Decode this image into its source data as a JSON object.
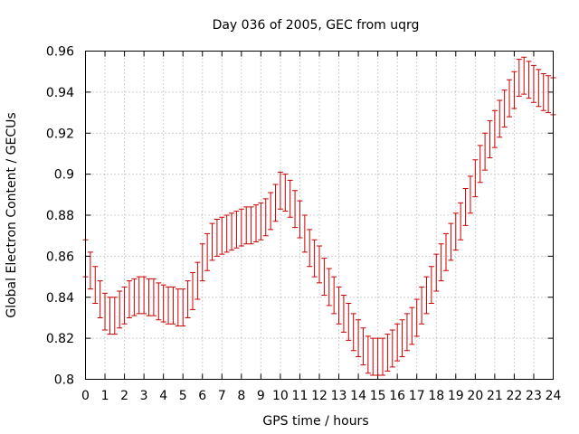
{
  "chart_data": {
    "type": "errorbar",
    "title": "Day 036 of 2005, GEC from uqrg",
    "xlabel": "GPS time / hours",
    "ylabel": "Global Electron Content / GECUs",
    "xlim": [
      0,
      24
    ],
    "ylim": [
      0.8,
      0.96
    ],
    "x_ticks": [
      "0",
      "1",
      "2",
      "3",
      "4",
      "5",
      "6",
      "7",
      "8",
      "9",
      "10",
      "11",
      "12",
      "13",
      "14",
      "15",
      "16",
      "17",
      "18",
      "19",
      "20",
      "21",
      "22",
      "23",
      "24"
    ],
    "y_ticks": [
      "0.8",
      "0.82",
      "0.84",
      "0.86",
      "0.88",
      "0.9",
      "0.92",
      "0.94",
      "0.96"
    ],
    "grid": true,
    "series_color": "#cc0000",
    "error": 0.009,
    "points": [
      [
        0.0,
        0.859
      ],
      [
        0.25,
        0.853
      ],
      [
        0.5,
        0.846
      ],
      [
        0.75,
        0.839
      ],
      [
        1.0,
        0.833
      ],
      [
        1.25,
        0.831
      ],
      [
        1.5,
        0.831
      ],
      [
        1.75,
        0.834
      ],
      [
        2.0,
        0.836
      ],
      [
        2.25,
        0.839
      ],
      [
        2.5,
        0.84
      ],
      [
        2.75,
        0.841
      ],
      [
        3.0,
        0.841
      ],
      [
        3.25,
        0.84
      ],
      [
        3.5,
        0.84
      ],
      [
        3.75,
        0.838
      ],
      [
        4.0,
        0.837
      ],
      [
        4.25,
        0.836
      ],
      [
        4.5,
        0.836
      ],
      [
        4.75,
        0.835
      ],
      [
        5.0,
        0.835
      ],
      [
        5.25,
        0.839
      ],
      [
        5.5,
        0.843
      ],
      [
        5.75,
        0.848
      ],
      [
        6.0,
        0.857
      ],
      [
        6.25,
        0.862
      ],
      [
        6.5,
        0.867
      ],
      [
        6.75,
        0.869
      ],
      [
        7.0,
        0.87
      ],
      [
        7.25,
        0.871
      ],
      [
        7.5,
        0.872
      ],
      [
        7.75,
        0.873
      ],
      [
        8.0,
        0.874
      ],
      [
        8.25,
        0.875
      ],
      [
        8.5,
        0.875
      ],
      [
        8.75,
        0.876
      ],
      [
        9.0,
        0.877
      ],
      [
        9.25,
        0.879
      ],
      [
        9.5,
        0.882
      ],
      [
        9.75,
        0.886
      ],
      [
        10.0,
        0.892
      ],
      [
        10.25,
        0.891
      ],
      [
        10.5,
        0.888
      ],
      [
        10.75,
        0.883
      ],
      [
        11.0,
        0.878
      ],
      [
        11.25,
        0.871
      ],
      [
        11.5,
        0.864
      ],
      [
        11.75,
        0.859
      ],
      [
        12.0,
        0.856
      ],
      [
        12.25,
        0.85
      ],
      [
        12.5,
        0.845
      ],
      [
        12.75,
        0.841
      ],
      [
        13.0,
        0.836
      ],
      [
        13.25,
        0.832
      ],
      [
        13.5,
        0.828
      ],
      [
        13.75,
        0.823
      ],
      [
        14.0,
        0.82
      ],
      [
        14.25,
        0.816
      ],
      [
        14.5,
        0.812
      ],
      [
        14.75,
        0.811
      ],
      [
        15.0,
        0.811
      ],
      [
        15.25,
        0.811
      ],
      [
        15.5,
        0.813
      ],
      [
        15.75,
        0.815
      ],
      [
        16.0,
        0.818
      ],
      [
        16.25,
        0.82
      ],
      [
        16.5,
        0.823
      ],
      [
        16.75,
        0.826
      ],
      [
        17.0,
        0.83
      ],
      [
        17.25,
        0.836
      ],
      [
        17.5,
        0.841
      ],
      [
        17.75,
        0.846
      ],
      [
        18.0,
        0.852
      ],
      [
        18.25,
        0.857
      ],
      [
        18.5,
        0.862
      ],
      [
        18.75,
        0.867
      ],
      [
        19.0,
        0.872
      ],
      [
        19.25,
        0.877
      ],
      [
        19.5,
        0.884
      ],
      [
        19.75,
        0.89
      ],
      [
        20.0,
        0.898
      ],
      [
        20.25,
        0.905
      ],
      [
        20.5,
        0.911
      ],
      [
        20.75,
        0.917
      ],
      [
        21.0,
        0.922
      ],
      [
        21.25,
        0.927
      ],
      [
        21.5,
        0.932
      ],
      [
        21.75,
        0.937
      ],
      [
        22.0,
        0.941
      ],
      [
        22.25,
        0.947
      ],
      [
        22.5,
        0.948
      ],
      [
        22.75,
        0.946
      ],
      [
        23.0,
        0.944
      ],
      [
        23.25,
        0.942
      ],
      [
        23.5,
        0.94
      ],
      [
        23.75,
        0.939
      ],
      [
        24.0,
        0.938
      ]
    ]
  }
}
